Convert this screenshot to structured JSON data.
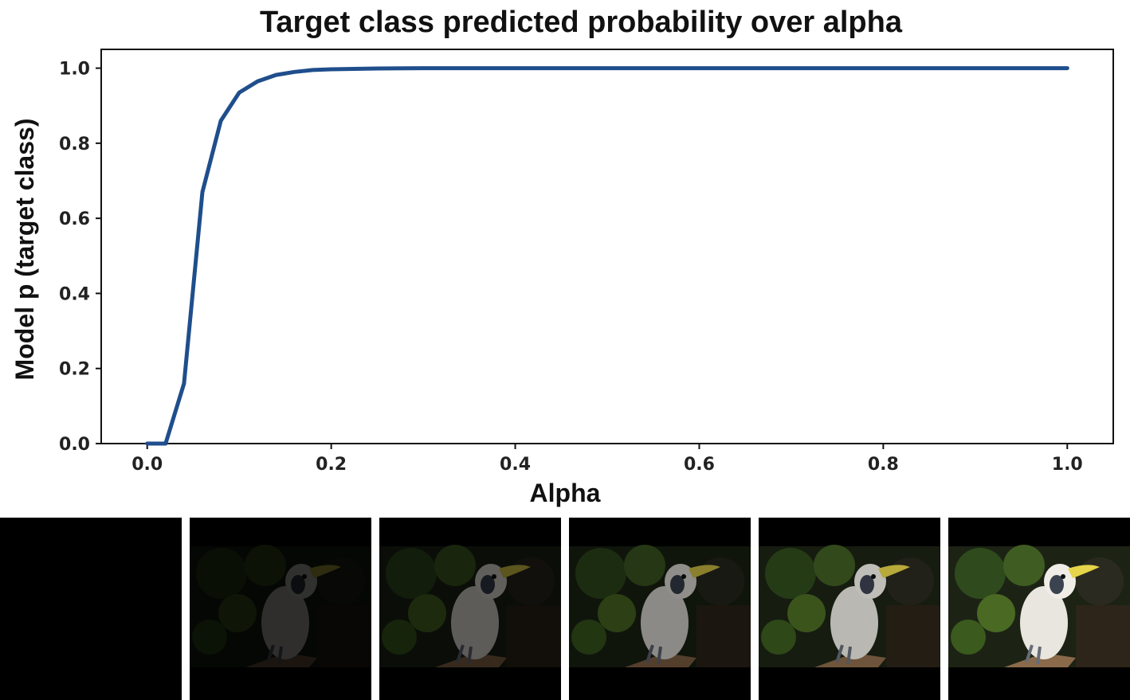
{
  "chart_data": {
    "type": "line",
    "title": "Target class predicted probability over alpha",
    "xlabel": "Alpha",
    "ylabel": "Model p (target class)",
    "xlim": [
      -0.05,
      1.05
    ],
    "ylim": [
      0.0,
      1.05
    ],
    "xticks": [
      "0.0",
      "0.2",
      "0.4",
      "0.6",
      "0.8",
      "1.0"
    ],
    "yticks": [
      "0.0",
      "0.2",
      "0.4",
      "0.6",
      "0.8",
      "1.0"
    ],
    "grid": false,
    "series": [
      {
        "color": "#1f4e8c",
        "x": [
          0.0,
          0.02,
          0.04,
          0.06,
          0.08,
          0.1,
          0.12,
          0.14,
          0.16,
          0.18,
          0.2,
          0.25,
          0.3,
          0.4,
          0.5,
          0.6,
          0.7,
          0.8,
          0.9,
          1.0
        ],
        "y": [
          0.0,
          0.0,
          0.16,
          0.67,
          0.86,
          0.935,
          0.965,
          0.982,
          0.99,
          0.995,
          0.997,
          0.999,
          1.0,
          1.0,
          1.0,
          1.0,
          1.0,
          1.0,
          1.0,
          1.0
        ]
      }
    ]
  },
  "thumbnails": {
    "description_icon": "cockatoo-image",
    "alphas": [
      0.0,
      0.2,
      0.4,
      0.6,
      0.8,
      1.0
    ]
  }
}
